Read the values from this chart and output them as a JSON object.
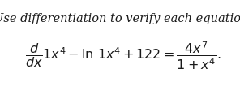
{
  "background_color": "#ffffff",
  "title_text": "Use differentiation to verify each equation.",
  "title_fontsize": 10.5,
  "title_style": "italic",
  "title_family": "serif",
  "equation_fontsize": 11.5,
  "text_color": "#1a1a1a",
  "fig_width": 2.96,
  "fig_height": 1.13
}
